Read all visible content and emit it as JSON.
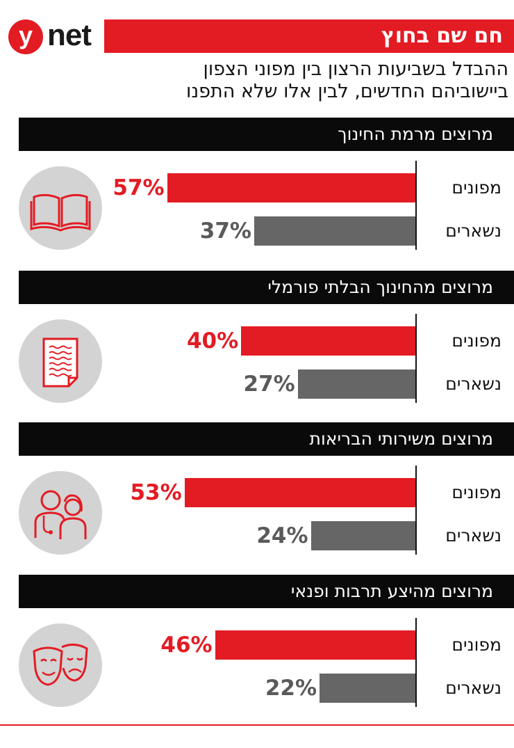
{
  "brand": {
    "logo_mark": "y",
    "logo_text": "net"
  },
  "header": {
    "banner": "חם שם בחוץ",
    "subtitle_line1": "ההבדל בשביעות הרצון בין מפוני הצפון",
    "subtitle_line2": "ביישוביהם החדשים, לבין אלו שלא התפנו"
  },
  "colors": {
    "accent": "#e31b23",
    "secondary": "#666666",
    "header_bg": "#0a0a0a",
    "icon_bg": "#d3d3d3"
  },
  "chart_data": {
    "type": "bar",
    "orientation": "horizontal",
    "unit": "%",
    "series_names": [
      "מפונים",
      "נשארים"
    ],
    "panels": [
      {
        "title": "מרוצים מרמת החינוך",
        "icon": "open-book-icon",
        "values": [
          57,
          37
        ],
        "labels": [
          "57%",
          "37%"
        ]
      },
      {
        "title": "מרוצים מהחינוך הבלתי פורמלי",
        "icon": "document-icon",
        "values": [
          40,
          27
        ],
        "labels": [
          "40%",
          "27%"
        ]
      },
      {
        "title": "מרוצים משירותי הבריאות",
        "icon": "doctors-icon",
        "values": [
          53,
          24
        ],
        "labels": [
          "53%",
          "24%"
        ]
      },
      {
        "title": "מרוצים מהיצע תרבות ופנאי",
        "icon": "theater-masks-icon",
        "values": [
          46,
          22
        ],
        "labels": [
          "46%",
          "22%"
        ]
      }
    ]
  }
}
